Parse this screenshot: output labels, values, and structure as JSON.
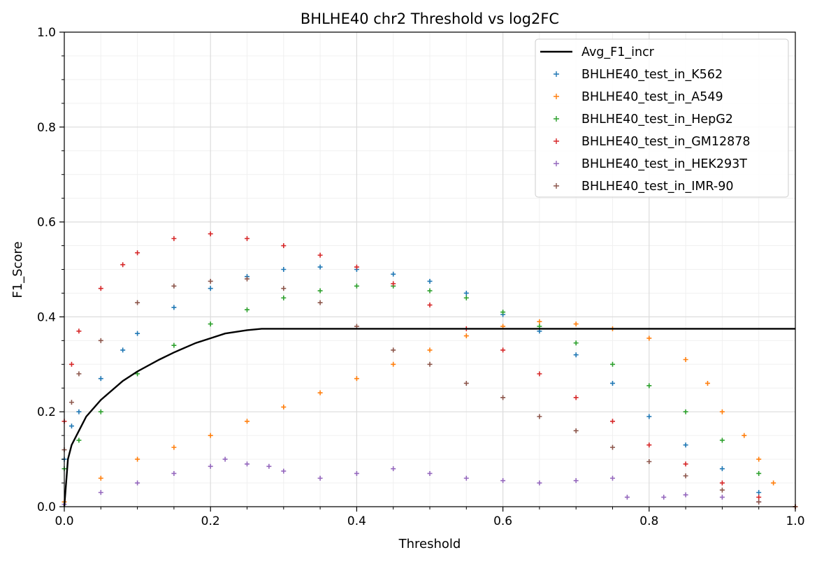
{
  "chart_data": {
    "type": "scatter",
    "title": "BHLHE40 chr2 Threshold vs log2FC",
    "xlabel": "Threshold",
    "ylabel": "F1_Score",
    "xlim": [
      0.0,
      1.0
    ],
    "ylim": [
      0.0,
      1.0
    ],
    "x_ticks": [
      "0.0",
      "0.2",
      "0.4",
      "0.6",
      "0.8",
      "1.0"
    ],
    "y_ticks": [
      "0.0",
      "0.2",
      "0.4",
      "0.6",
      "0.8",
      "1.0"
    ],
    "grid": "major and minor",
    "legend_position": "top-right",
    "series": [
      {
        "name": "Avg_F1_incr",
        "kind": "line",
        "color": "#000000",
        "points": [
          [
            0.0,
            0.0
          ],
          [
            0.005,
            0.1
          ],
          [
            0.01,
            0.13
          ],
          [
            0.02,
            0.16
          ],
          [
            0.03,
            0.19
          ],
          [
            0.05,
            0.225
          ],
          [
            0.08,
            0.265
          ],
          [
            0.1,
            0.285
          ],
          [
            0.13,
            0.31
          ],
          [
            0.15,
            0.325
          ],
          [
            0.18,
            0.345
          ],
          [
            0.2,
            0.355
          ],
          [
            0.22,
            0.365
          ],
          [
            0.25,
            0.372
          ],
          [
            0.27,
            0.375
          ],
          [
            0.3,
            0.375
          ],
          [
            0.5,
            0.375
          ],
          [
            0.7,
            0.375
          ],
          [
            1.0,
            0.375
          ]
        ]
      },
      {
        "name": "BHLHE40_test_in_K562",
        "kind": "marker",
        "color": "#1f77b4",
        "points": [
          [
            0.0,
            0.1
          ],
          [
            0.01,
            0.17
          ],
          [
            0.02,
            0.2
          ],
          [
            0.05,
            0.27
          ],
          [
            0.08,
            0.33
          ],
          [
            0.1,
            0.365
          ],
          [
            0.15,
            0.42
          ],
          [
            0.2,
            0.46
          ],
          [
            0.25,
            0.485
          ],
          [
            0.3,
            0.5
          ],
          [
            0.35,
            0.505
          ],
          [
            0.4,
            0.5
          ],
          [
            0.45,
            0.49
          ],
          [
            0.5,
            0.475
          ],
          [
            0.55,
            0.45
          ],
          [
            0.6,
            0.405
          ],
          [
            0.65,
            0.37
          ],
          [
            0.7,
            0.32
          ],
          [
            0.75,
            0.26
          ],
          [
            0.8,
            0.19
          ],
          [
            0.85,
            0.13
          ],
          [
            0.9,
            0.08
          ],
          [
            0.95,
            0.03
          ],
          [
            1.0,
            0.0
          ]
        ]
      },
      {
        "name": "BHLHE40_test_in_A549",
        "kind": "marker",
        "color": "#ff7f0e",
        "points": [
          [
            0.0,
            0.01
          ],
          [
            0.05,
            0.06
          ],
          [
            0.1,
            0.1
          ],
          [
            0.15,
            0.125
          ],
          [
            0.2,
            0.15
          ],
          [
            0.25,
            0.18
          ],
          [
            0.3,
            0.21
          ],
          [
            0.35,
            0.24
          ],
          [
            0.4,
            0.27
          ],
          [
            0.45,
            0.3
          ],
          [
            0.5,
            0.33
          ],
          [
            0.55,
            0.36
          ],
          [
            0.6,
            0.38
          ],
          [
            0.65,
            0.39
          ],
          [
            0.7,
            0.385
          ],
          [
            0.75,
            0.375
          ],
          [
            0.8,
            0.355
          ],
          [
            0.85,
            0.31
          ],
          [
            0.88,
            0.26
          ],
          [
            0.9,
            0.2
          ],
          [
            0.93,
            0.15
          ],
          [
            0.95,
            0.1
          ],
          [
            0.97,
            0.05
          ],
          [
            1.0,
            0.0
          ]
        ]
      },
      {
        "name": "BHLHE40_test_in_HepG2",
        "kind": "marker",
        "color": "#2ca02c",
        "points": [
          [
            0.0,
            0.08
          ],
          [
            0.02,
            0.14
          ],
          [
            0.05,
            0.2
          ],
          [
            0.1,
            0.28
          ],
          [
            0.15,
            0.34
          ],
          [
            0.2,
            0.385
          ],
          [
            0.25,
            0.415
          ],
          [
            0.3,
            0.44
          ],
          [
            0.35,
            0.455
          ],
          [
            0.4,
            0.465
          ],
          [
            0.45,
            0.465
          ],
          [
            0.5,
            0.455
          ],
          [
            0.55,
            0.44
          ],
          [
            0.6,
            0.41
          ],
          [
            0.65,
            0.38
          ],
          [
            0.7,
            0.345
          ],
          [
            0.75,
            0.3
          ],
          [
            0.8,
            0.255
          ],
          [
            0.85,
            0.2
          ],
          [
            0.9,
            0.14
          ],
          [
            0.95,
            0.07
          ],
          [
            1.0,
            0.0
          ]
        ]
      },
      {
        "name": "BHLHE40_test_in_GM12878",
        "kind": "marker",
        "color": "#d62728",
        "points": [
          [
            0.0,
            0.18
          ],
          [
            0.01,
            0.3
          ],
          [
            0.02,
            0.37
          ],
          [
            0.05,
            0.46
          ],
          [
            0.08,
            0.51
          ],
          [
            0.1,
            0.535
          ],
          [
            0.15,
            0.565
          ],
          [
            0.2,
            0.575
          ],
          [
            0.25,
            0.565
          ],
          [
            0.3,
            0.55
          ],
          [
            0.35,
            0.53
          ],
          [
            0.4,
            0.505
          ],
          [
            0.45,
            0.47
          ],
          [
            0.5,
            0.425
          ],
          [
            0.55,
            0.375
          ],
          [
            0.6,
            0.33
          ],
          [
            0.65,
            0.28
          ],
          [
            0.7,
            0.23
          ],
          [
            0.75,
            0.18
          ],
          [
            0.8,
            0.13
          ],
          [
            0.85,
            0.09
          ],
          [
            0.9,
            0.05
          ],
          [
            0.95,
            0.02
          ],
          [
            1.0,
            0.0
          ]
        ]
      },
      {
        "name": "BHLHE40_test_in_HEK293T",
        "kind": "marker",
        "color": "#9467bd",
        "points": [
          [
            0.0,
            0.005
          ],
          [
            0.05,
            0.03
          ],
          [
            0.1,
            0.05
          ],
          [
            0.15,
            0.07
          ],
          [
            0.2,
            0.085
          ],
          [
            0.22,
            0.1
          ],
          [
            0.25,
            0.09
          ],
          [
            0.28,
            0.085
          ],
          [
            0.3,
            0.075
          ],
          [
            0.35,
            0.06
          ],
          [
            0.4,
            0.07
          ],
          [
            0.45,
            0.08
          ],
          [
            0.5,
            0.07
          ],
          [
            0.55,
            0.06
          ],
          [
            0.6,
            0.055
          ],
          [
            0.65,
            0.05
          ],
          [
            0.7,
            0.055
          ],
          [
            0.75,
            0.06
          ],
          [
            0.77,
            0.02
          ],
          [
            0.82,
            0.02
          ],
          [
            0.85,
            0.025
          ],
          [
            0.9,
            0.02
          ],
          [
            0.95,
            0.01
          ]
        ]
      },
      {
        "name": "BHLHE40_test_in_IMR-90",
        "kind": "marker",
        "color": "#8c564b",
        "points": [
          [
            0.0,
            0.12
          ],
          [
            0.01,
            0.22
          ],
          [
            0.02,
            0.28
          ],
          [
            0.05,
            0.35
          ],
          [
            0.1,
            0.43
          ],
          [
            0.15,
            0.465
          ],
          [
            0.2,
            0.475
          ],
          [
            0.25,
            0.48
          ],
          [
            0.3,
            0.46
          ],
          [
            0.35,
            0.43
          ],
          [
            0.4,
            0.38
          ],
          [
            0.45,
            0.33
          ],
          [
            0.5,
            0.3
          ],
          [
            0.55,
            0.26
          ],
          [
            0.6,
            0.23
          ],
          [
            0.65,
            0.19
          ],
          [
            0.7,
            0.16
          ],
          [
            0.75,
            0.125
          ],
          [
            0.8,
            0.095
          ],
          [
            0.85,
            0.065
          ],
          [
            0.9,
            0.035
          ],
          [
            0.95,
            0.01
          ],
          [
            1.0,
            0.0
          ]
        ]
      }
    ]
  }
}
